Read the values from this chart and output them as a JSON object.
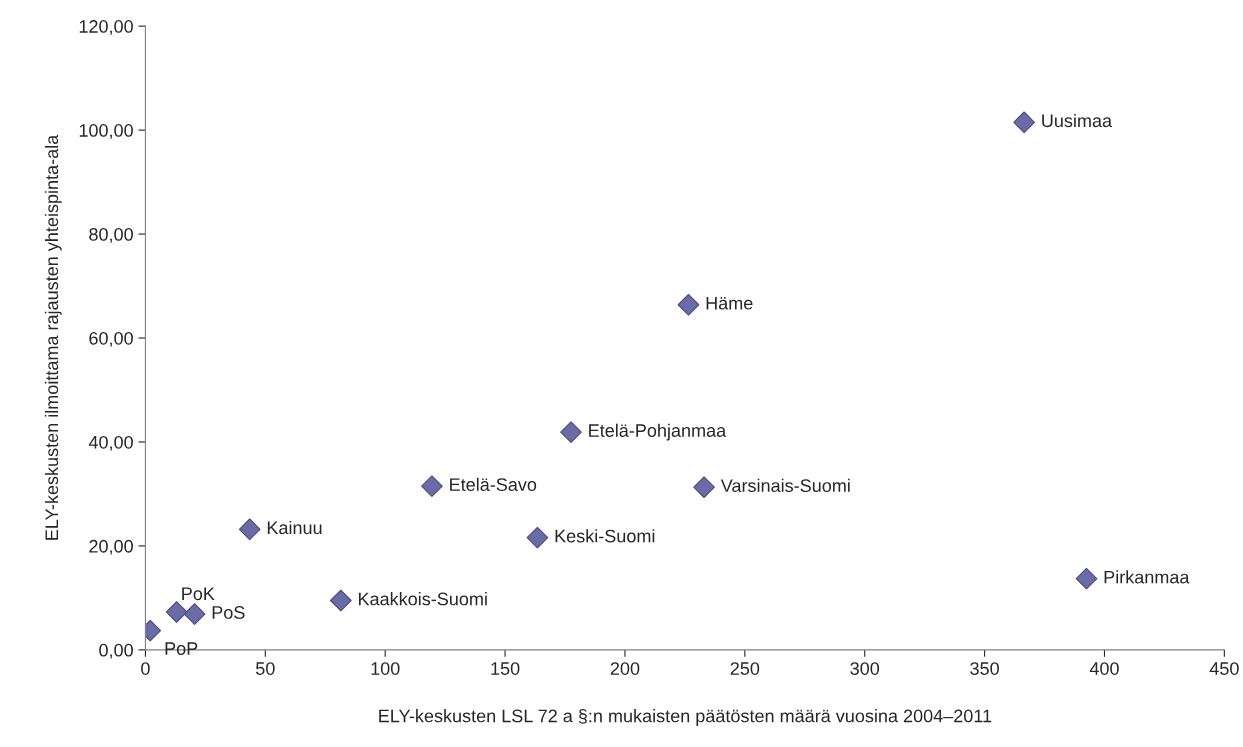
{
  "chart_data": {
    "type": "scatter",
    "xlabel": "ELY-keskusten LSL 72 a §:n mukaisten päätösten määrä vuosina 2004–2011",
    "ylabel": "ELY-keskusten ilmoittama rajausten yhteispinta-ala",
    "x": [
      2,
      13,
      20.5,
      43.5,
      81.5,
      119.5,
      163.5,
      177.5,
      226.5,
      233,
      366.5,
      392.5
    ],
    "series": [
      {
        "color": "#6b6ba6",
        "values": [
          3.7,
          7.3,
          6.9,
          23.2,
          9.5,
          31.5,
          21.6,
          41.9,
          66.4,
          31.3,
          101.5,
          13.7
        ]
      }
    ],
    "marker": "diamond",
    "grid": false,
    "legend": false,
    "xlim": [
      0,
      450
    ],
    "xticks": [
      0,
      50,
      100,
      150,
      200,
      250,
      300,
      350,
      400,
      450
    ],
    "ylim": [
      0,
      120
    ],
    "yticks": [
      {
        "value": 0,
        "label": "0,00"
      },
      {
        "value": 20,
        "label": "20,00"
      },
      {
        "value": 40,
        "label": "40,00"
      },
      {
        "value": 60,
        "label": "60,00"
      },
      {
        "value": 80,
        "label": "80,00"
      },
      {
        "value": 100,
        "label": "100,00"
      },
      {
        "value": 120,
        "label": "120,00"
      }
    ],
    "annotations": [
      {
        "text": "PoP",
        "x": 2,
        "y": 3.7
      },
      {
        "text": "PoK",
        "x": 13,
        "y": 7.3
      },
      {
        "text": "PoS",
        "x": 20.5,
        "y": 6.9
      },
      {
        "text": "Kainuu",
        "x": 43.5,
        "y": 23.2
      },
      {
        "text": "Kaakkois-Suomi",
        "x": 81.5,
        "y": 9.5
      },
      {
        "text": "Etelä-Savo",
        "x": 119.5,
        "y": 31.5
      },
      {
        "text": "Keski-Suomi",
        "x": 163.5,
        "y": 21.6
      },
      {
        "text": "Etelä-Pohjanmaa",
        "x": 177.5,
        "y": 41.9
      },
      {
        "text": "Häme",
        "x": 226.5,
        "y": 66.4
      },
      {
        "text": "Varsinais-Suomi",
        "x": 233,
        "y": 31.3
      },
      {
        "text": "Uusimaa",
        "x": 366.5,
        "y": 101.5
      },
      {
        "text": "Pirkanmaa",
        "x": 392.5,
        "y": 13.7
      }
    ]
  }
}
